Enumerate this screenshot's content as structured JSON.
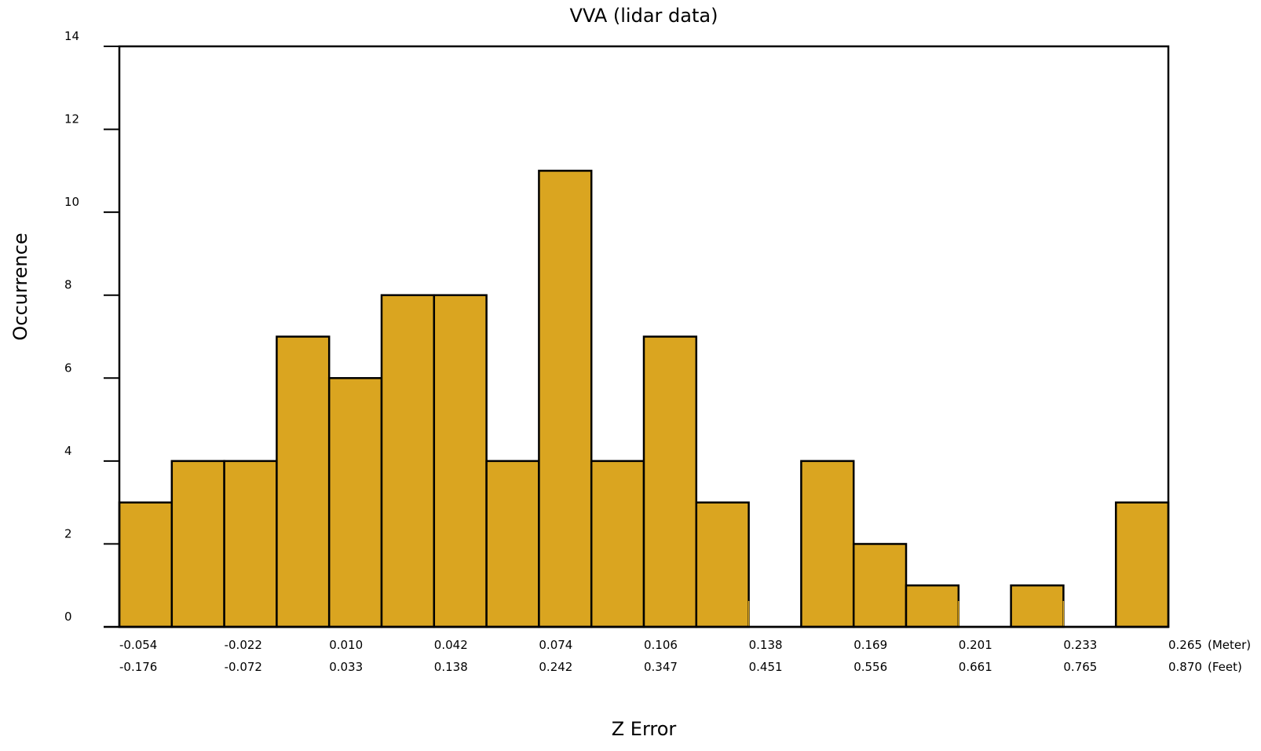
{
  "chart_data": {
    "type": "bar",
    "title": "VVA (lidar data)",
    "xlabel": "Z Error",
    "ylabel": "Occurrence",
    "ylim": [
      0,
      14
    ],
    "y_ticks": [
      0,
      2,
      4,
      6,
      8,
      10,
      12,
      14
    ],
    "bins": 20,
    "values": [
      3,
      4,
      4,
      7,
      6,
      8,
      8,
      4,
      11,
      4,
      7,
      3,
      0,
      4,
      2,
      1,
      0,
      1,
      0,
      3
    ],
    "x_ticks_meter": [
      "-0.054",
      "-0.022",
      "0.010",
      "0.042",
      "0.074",
      "0.106",
      "0.138",
      "0.169",
      "0.201",
      "0.233",
      "0.265"
    ],
    "x_ticks_feet": [
      "-0.176",
      "-0.072",
      "0.033",
      "0.138",
      "0.242",
      "0.347",
      "0.451",
      "0.556",
      "0.661",
      "0.765",
      "0.870"
    ],
    "meter_unit": "(Meter)",
    "feet_unit": "(Feet)",
    "empty_bin_markers": [
      12,
      16,
      18
    ],
    "grid": false,
    "legend": "none",
    "colors": {
      "bar_fill": "#DAA520",
      "bar_stroke": "#000000",
      "marker": "#DAA520"
    }
  }
}
